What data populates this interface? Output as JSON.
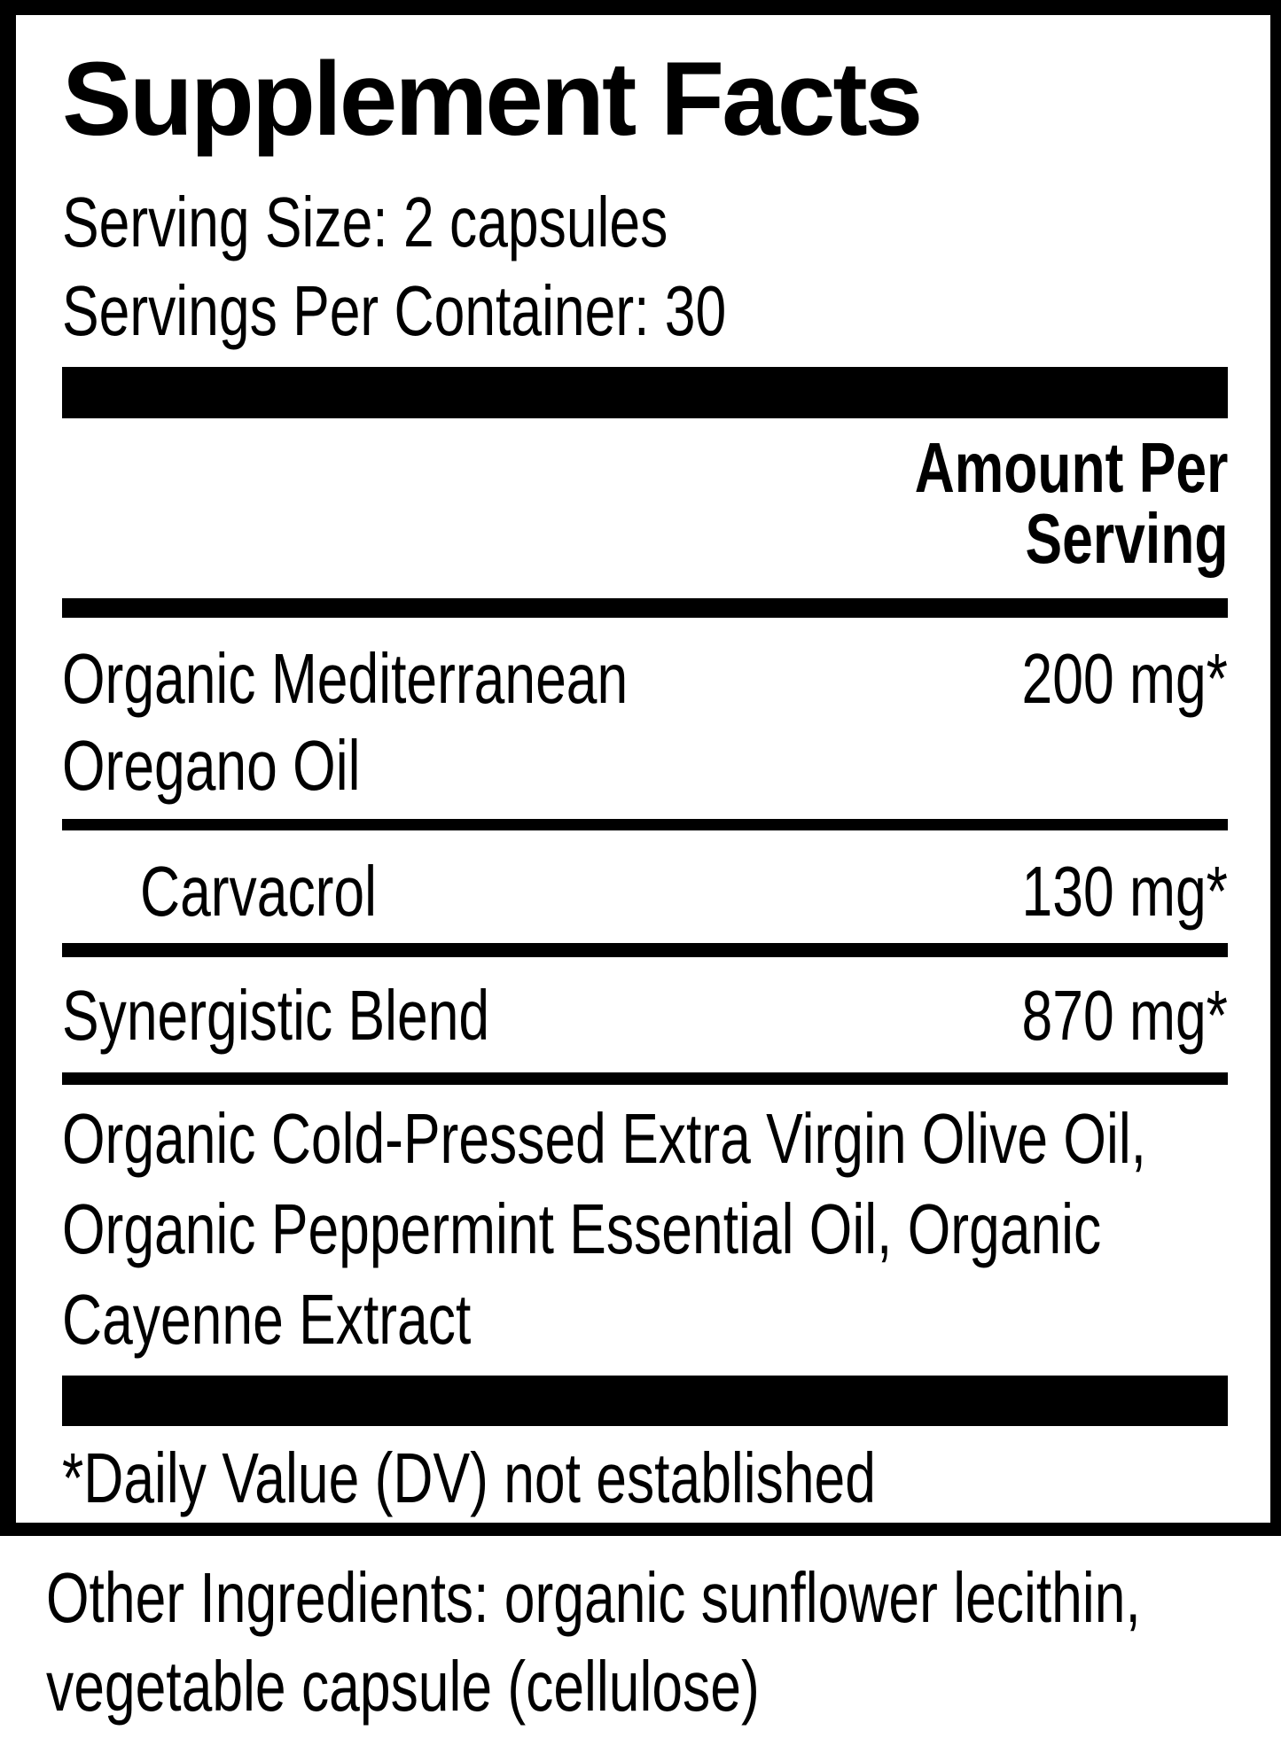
{
  "colors": {
    "ink": "#000000",
    "background": "#ffffff"
  },
  "label": {
    "title": "Supplement Facts",
    "serving_size": "Serving Size: 2 capsules",
    "servings_per_container": "Servings Per Container: 30",
    "amount_header": {
      "line1": "Amount Per",
      "line2": "Serving"
    },
    "rows": [
      {
        "name_line1": "Organic Mediterranean",
        "name_line2": "Oregano Oil",
        "amount": "200 mg*"
      },
      {
        "name_line1": "Carvacrol",
        "amount": "130 mg*"
      },
      {
        "name_line1": "Synergistic Blend",
        "amount": "870 mg*"
      }
    ],
    "blend_ingredients_lines": [
      "Organic Cold-Pressed Extra Virgin Olive Oil,",
      "Organic Peppermint Essential Oil, Organic",
      "Cayenne Extract"
    ],
    "footnote": "*Daily Value (DV) not established"
  },
  "other_ingredients": {
    "line1": "Other Ingredients: organic sunflower lecithin,",
    "line2": "vegetable capsule (cellulose)"
  }
}
